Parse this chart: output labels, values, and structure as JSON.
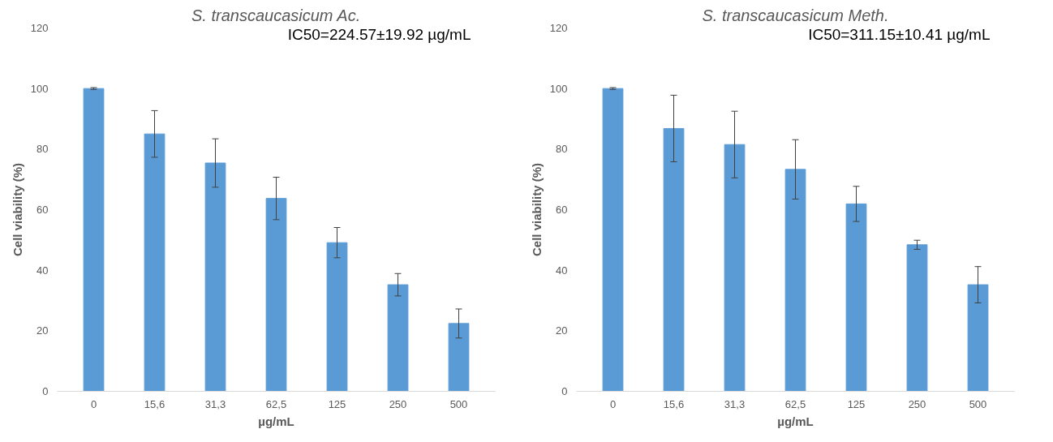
{
  "chart_data": [
    {
      "type": "bar",
      "title": "S. transcaucasicum Ac.",
      "xlabel": "µg/mL",
      "ylabel": "Cell viability (%)",
      "categories": [
        "0",
        "15,6",
        "31,3",
        "62,5",
        "125",
        "250",
        "500"
      ],
      "values": [
        100,
        85,
        75.4,
        63.7,
        49.1,
        35.2,
        22.4
      ],
      "errors": [
        0.3,
        7.7,
        8,
        7,
        5,
        3.7,
        4.8
      ],
      "color": "#5b9bd5",
      "ylim": [
        0,
        120
      ],
      "yticks": [
        0,
        20,
        40,
        60,
        80,
        100,
        120
      ],
      "grid": false,
      "annotations": [
        "IC50=224.57±19.92 µg/mL"
      ]
    },
    {
      "type": "bar",
      "title": "S. transcaucasicum Meth.",
      "xlabel": "µg/mL",
      "ylabel": "Cell viability (%)",
      "categories": [
        "0",
        "15,6",
        "31,3",
        "62,5",
        "125",
        "250",
        "500"
      ],
      "values": [
        100,
        86.8,
        81.5,
        73.3,
        61.9,
        48.4,
        35.2
      ],
      "errors": [
        0.3,
        11,
        11,
        9.8,
        5.8,
        1.5,
        6
      ],
      "color": "#5b9bd5",
      "ylim": [
        0,
        120
      ],
      "yticks": [
        0,
        20,
        40,
        60,
        80,
        100,
        120
      ],
      "grid": false,
      "annotations": [
        "IC50=311.15±10.41 µg/mL"
      ]
    }
  ]
}
